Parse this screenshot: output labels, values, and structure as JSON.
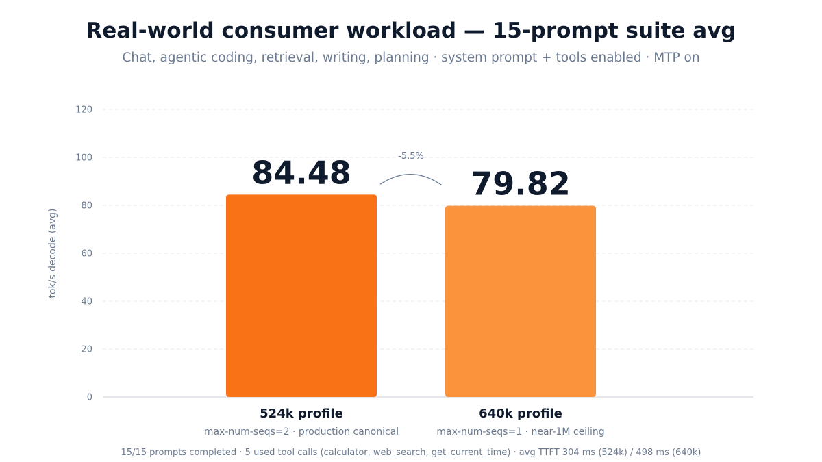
{
  "title": "Real-world consumer workload — 15-prompt suite avg",
  "subtitle": "Chat, agentic coding, retrieval, writing, planning · system prompt + tools enabled · MTP on",
  "footer": "15/15 prompts completed · 5 used tool calls (calculator, web_search, get_current_time) · avg TTFT 304 ms (524k) / 498 ms (640k)",
  "chart_data": {
    "type": "bar",
    "categories": [
      "524k profile",
      "640k profile"
    ],
    "category_sublabels": [
      "max-num-seqs=2 · production canonical",
      "max-num-seqs=1 · near-1M ceiling"
    ],
    "values": [
      84.48,
      79.82
    ],
    "value_labels": [
      "84.48",
      "79.82"
    ],
    "bar_colors": [
      "#f97316",
      "#fb923c"
    ],
    "ylabel": "tok/s decode (avg)",
    "ylim": [
      0,
      120
    ],
    "yticks": [
      0,
      20,
      40,
      60,
      80,
      100,
      120
    ],
    "grid": true,
    "annotation": "-5.5%"
  }
}
